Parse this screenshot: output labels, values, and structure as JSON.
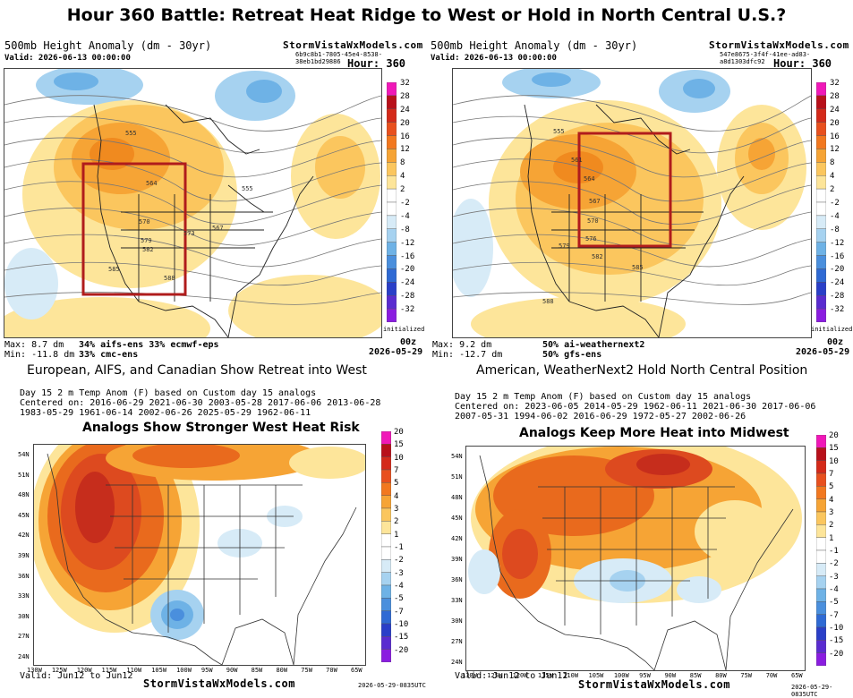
{
  "title": "Hour 360 Battle: Retreat Heat Ridge to West or Hold in North Central U.S.?",
  "colors": {
    "box": "#b01c1c",
    "warm": [
      "#fde59a",
      "#fbc65e",
      "#f6a435",
      "#f08a1f",
      "#e96a1d",
      "#dd4a1f",
      "#c62d1c"
    ],
    "cool": [
      "#d7ebf7",
      "#a6d2f0",
      "#6eb2e6",
      "#4a8fdd",
      "#2f6ad4"
    ]
  },
  "top_left": {
    "header": "500mb Height Anomaly (dm - 30yr)",
    "valid": "Valid: 2026-06-13 00:00:00",
    "brand": "StormVistaWxModels.com",
    "hash": "6b9c8b1-7805-45e4-8538-38eb1bd29886",
    "hour": "Hour: 360",
    "max": "Max: 8.7 dm",
    "min": "Min: -11.8 dm",
    "models_l1": "34% aifs-ens  33% ecmwf-eps",
    "models_l2": "33% cmc-ens",
    "init": "00z",
    "init_date": "2026-05-29",
    "init_word": "initialized",
    "caption": "European, AIFS, and Canadian Show Retreat into West",
    "contours": [
      "555",
      "564",
      "555",
      "567",
      "570",
      "573",
      "579",
      "582",
      "585",
      "588"
    ]
  },
  "top_right": {
    "header": "500mb Height Anomaly (dm - 30yr)",
    "valid": "Valid: 2026-06-13 00:00:00",
    "brand": "StormVistaWxModels.com",
    "hash": "547e8675-3f4f-41ee-ad83-a8d1303dfc92",
    "hour": "Hour: 360",
    "max": "Max: 9.2 dm",
    "min": "Min: -12.7 dm",
    "models_l1": "50% ai-weathernext2",
    "models_l2": "50% gfs-ens",
    "init": "00z",
    "init_date": "2026-05-29",
    "init_word": "initialized",
    "caption": "American, WeatherNext2 Hold North Central Position",
    "contours": [
      "555",
      "561",
      "564",
      "567",
      "570",
      "576",
      "579",
      "582",
      "585",
      "588"
    ]
  },
  "height_scale": [
    "32",
    "28",
    "24",
    "20",
    "16",
    "12",
    "8",
    "4",
    "2",
    "-2",
    "-4",
    "-8",
    "-12",
    "-16",
    "-20",
    "-24",
    "-28",
    "-32"
  ],
  "bottom_left": {
    "header": "Day 15 2 m Temp Anom (F) based on Custom day 15 analogs",
    "centered_l1": "Centered on: 2016-06-29  2021-06-30  2003-05-28  2017-06-06  2013-06-28",
    "centered_l2": "1983-05-29  1961-06-14  2002-06-26  2025-05-29  1962-06-11",
    "overlay": "Analogs Show Stronger West Heat Risk",
    "valid": "Valid: Jun12 to Jun12",
    "brand": "StormVistaWxModels.com",
    "stamp": "2026-05-29-0835UTC",
    "lats": [
      "54N",
      "51N",
      "48N",
      "45N",
      "42N",
      "39N",
      "36N",
      "33N",
      "30N",
      "27N",
      "24N"
    ],
    "lons": [
      "130W",
      "125W",
      "120W",
      "115W",
      "110W",
      "105W",
      "100W",
      "95W",
      "90W",
      "85W",
      "80W",
      "75W",
      "70W",
      "65W"
    ]
  },
  "bottom_right": {
    "header": "Day 15 2 m Temp Anom (F) based on Custom day 15 analogs",
    "centered_l1": "Centered on: 2023-06-05  2014-05-29  1962-06-11  2021-06-30  2017-06-06",
    "centered_l2": "2007-05-31  1994-06-02  2016-06-29  1972-05-27  2002-06-26",
    "overlay": "Analogs Keep More Heat into Midwest",
    "valid": "Valid: Jun12 to Jun12",
    "brand": "StormVistaWxModels.com",
    "stamp": "2026-05-29-0835UTC",
    "lats": [
      "54N",
      "51N",
      "48N",
      "45N",
      "42N",
      "39N",
      "36N",
      "33N",
      "30N",
      "27N",
      "24N"
    ],
    "lons": [
      "130W",
      "125W",
      "120W",
      "115W",
      "110W",
      "105W",
      "100W",
      "95W",
      "90W",
      "85W",
      "80W",
      "75W",
      "70W",
      "65W"
    ]
  },
  "temp_scale": [
    "20",
    "15",
    "10",
    "7",
    "5",
    "4",
    "3",
    "2",
    "1",
    "-1",
    "-2",
    "-3",
    "-4",
    "-5",
    "-7",
    "-10",
    "-15",
    "-20"
  ]
}
